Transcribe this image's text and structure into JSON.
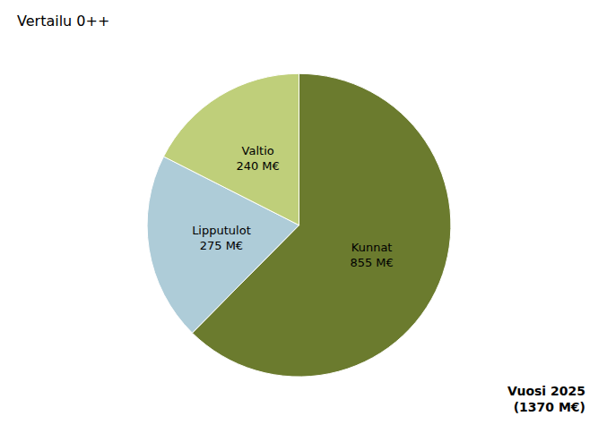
{
  "chart_data": {
    "type": "pie",
    "title": "Vertailu 0++",
    "categories": [
      "Kunnat\n855 M€",
      "Lipputulot\n275 M€",
      "Valtio\n240 M€"
    ],
    "values": [
      855,
      275,
      240
    ],
    "colors": [
      "#6B7B2E",
      "#AECCD8",
      "#BFCF7A"
    ],
    "annotation": "Vuosi 2025\n(1370 M€)"
  }
}
